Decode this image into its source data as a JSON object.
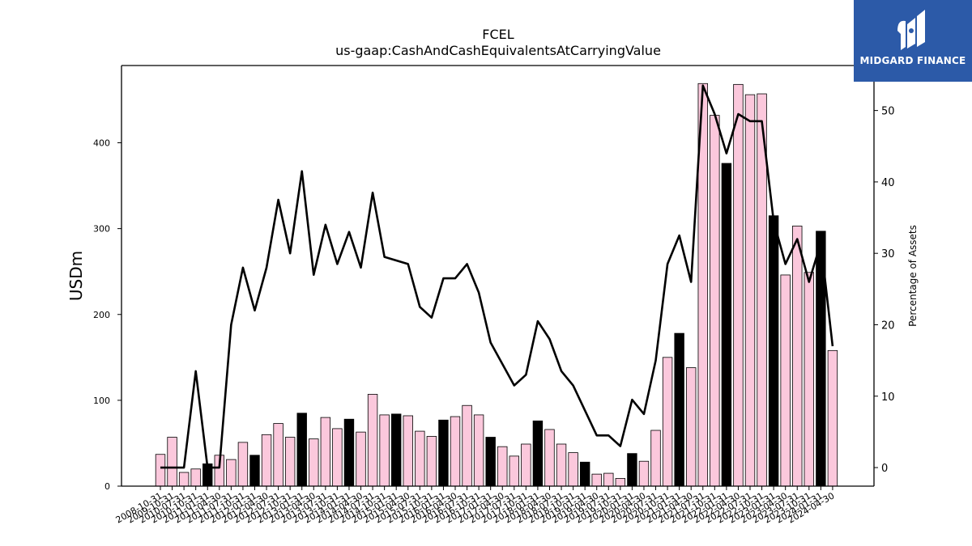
{
  "brand": {
    "name": "MIDGARD FINANCE",
    "logo_icon": "midgard-logo-icon",
    "background": "#2c5aa8"
  },
  "chart_data": {
    "type": "bar",
    "title": "FCEL",
    "subtitle": "us-gaap:CashAndCashEquivalentsAtCarryingValue",
    "ylabel": "USDm",
    "y2label": "Percentage of Assets",
    "ylim": [
      0,
      490
    ],
    "y2lim": [
      -2.6,
      56.3
    ],
    "yticks": [
      0,
      100,
      200,
      300,
      400
    ],
    "y2ticks": [
      0,
      10,
      20,
      30,
      40,
      50
    ],
    "grid": false,
    "colors": {
      "quarterly": "#fbc8dc",
      "annual": "#000000",
      "line": "#000000"
    },
    "categories": [
      "2008-10-31",
      "2009-10-31",
      "2010-07-31",
      "2010-10-31",
      "2011-01-31",
      "2011-04-30",
      "2011-07-31",
      "2011-10-31",
      "2012-01-31",
      "2012-04-30",
      "2012-07-31",
      "2012-10-31",
      "2013-01-31",
      "2013-04-30",
      "2013-07-31",
      "2013-10-31",
      "2014-01-31",
      "2014-04-30",
      "2014-07-31",
      "2014-10-31",
      "2015-01-31",
      "2015-04-30",
      "2015-07-31",
      "2015-10-31",
      "2016-01-31",
      "2016-04-30",
      "2016-07-31",
      "2016-10-31",
      "2017-01-31",
      "2017-04-30",
      "2017-07-31",
      "2017-10-31",
      "2018-01-31",
      "2018-04-30",
      "2018-07-31",
      "2018-10-31",
      "2019-01-31",
      "2019-04-30",
      "2019-07-31",
      "2019-10-31",
      "2020-01-31",
      "2020-04-30",
      "2020-07-31",
      "2020-10-31",
      "2021-01-31",
      "2021-04-30",
      "2021-07-31",
      "2021-10-31",
      "2022-01-31",
      "2022-04-30",
      "2022-07-31",
      "2022-10-31",
      "2023-01-31",
      "2023-04-30",
      "2023-07-31",
      "2023-10-31",
      "2024-01-31",
      "2024-04-30"
    ],
    "series": [
      {
        "name": "",
        "kind": "bar",
        "axis": "left",
        "values": [
          37,
          57,
          16,
          20,
          26,
          36,
          31,
          51,
          36,
          60,
          73,
          57,
          85,
          55,
          80,
          67,
          78,
          63,
          107,
          83,
          84,
          82,
          64,
          58,
          77,
          81,
          94,
          83,
          57,
          46,
          35,
          49,
          76,
          66,
          49,
          39,
          28,
          14,
          15,
          9,
          38,
          29,
          65,
          150,
          178,
          138,
          469,
          432,
          376,
          468,
          456,
          457,
          315,
          246,
          303,
          249,
          297,
          158
        ],
        "annual_flags": [
          0,
          0,
          0,
          0,
          1,
          0,
          0,
          0,
          1,
          0,
          0,
          0,
          1,
          0,
          0,
          0,
          1,
          0,
          0,
          0,
          1,
          0,
          0,
          0,
          1,
          0,
          0,
          0,
          1,
          0,
          0,
          0,
          1,
          0,
          0,
          0,
          1,
          0,
          0,
          0,
          1,
          0,
          0,
          0,
          1,
          0,
          0,
          0,
          1,
          0,
          0,
          0,
          1,
          0,
          0,
          0,
          1,
          0
        ]
      },
      {
        "name": "",
        "kind": "line",
        "axis": "right",
        "values": [
          0,
          0,
          0,
          13.5,
          0,
          0,
          20,
          28,
          22,
          28,
          37.5,
          30,
          41.5,
          27,
          34,
          28.5,
          33,
          28,
          38.5,
          29.5,
          29,
          28.5,
          22.5,
          21,
          26.5,
          26.5,
          28.5,
          24.5,
          17.5,
          14.5,
          11.5,
          13,
          20.5,
          18,
          13.5,
          11.5,
          8,
          4.5,
          4.5,
          3,
          9.5,
          7.5,
          15,
          28.5,
          32.5,
          26,
          53.5,
          49.5,
          44,
          49.5,
          48.5,
          48.5,
          34.5,
          28.5,
          32,
          26,
          31.5,
          17
        ]
      }
    ]
  }
}
